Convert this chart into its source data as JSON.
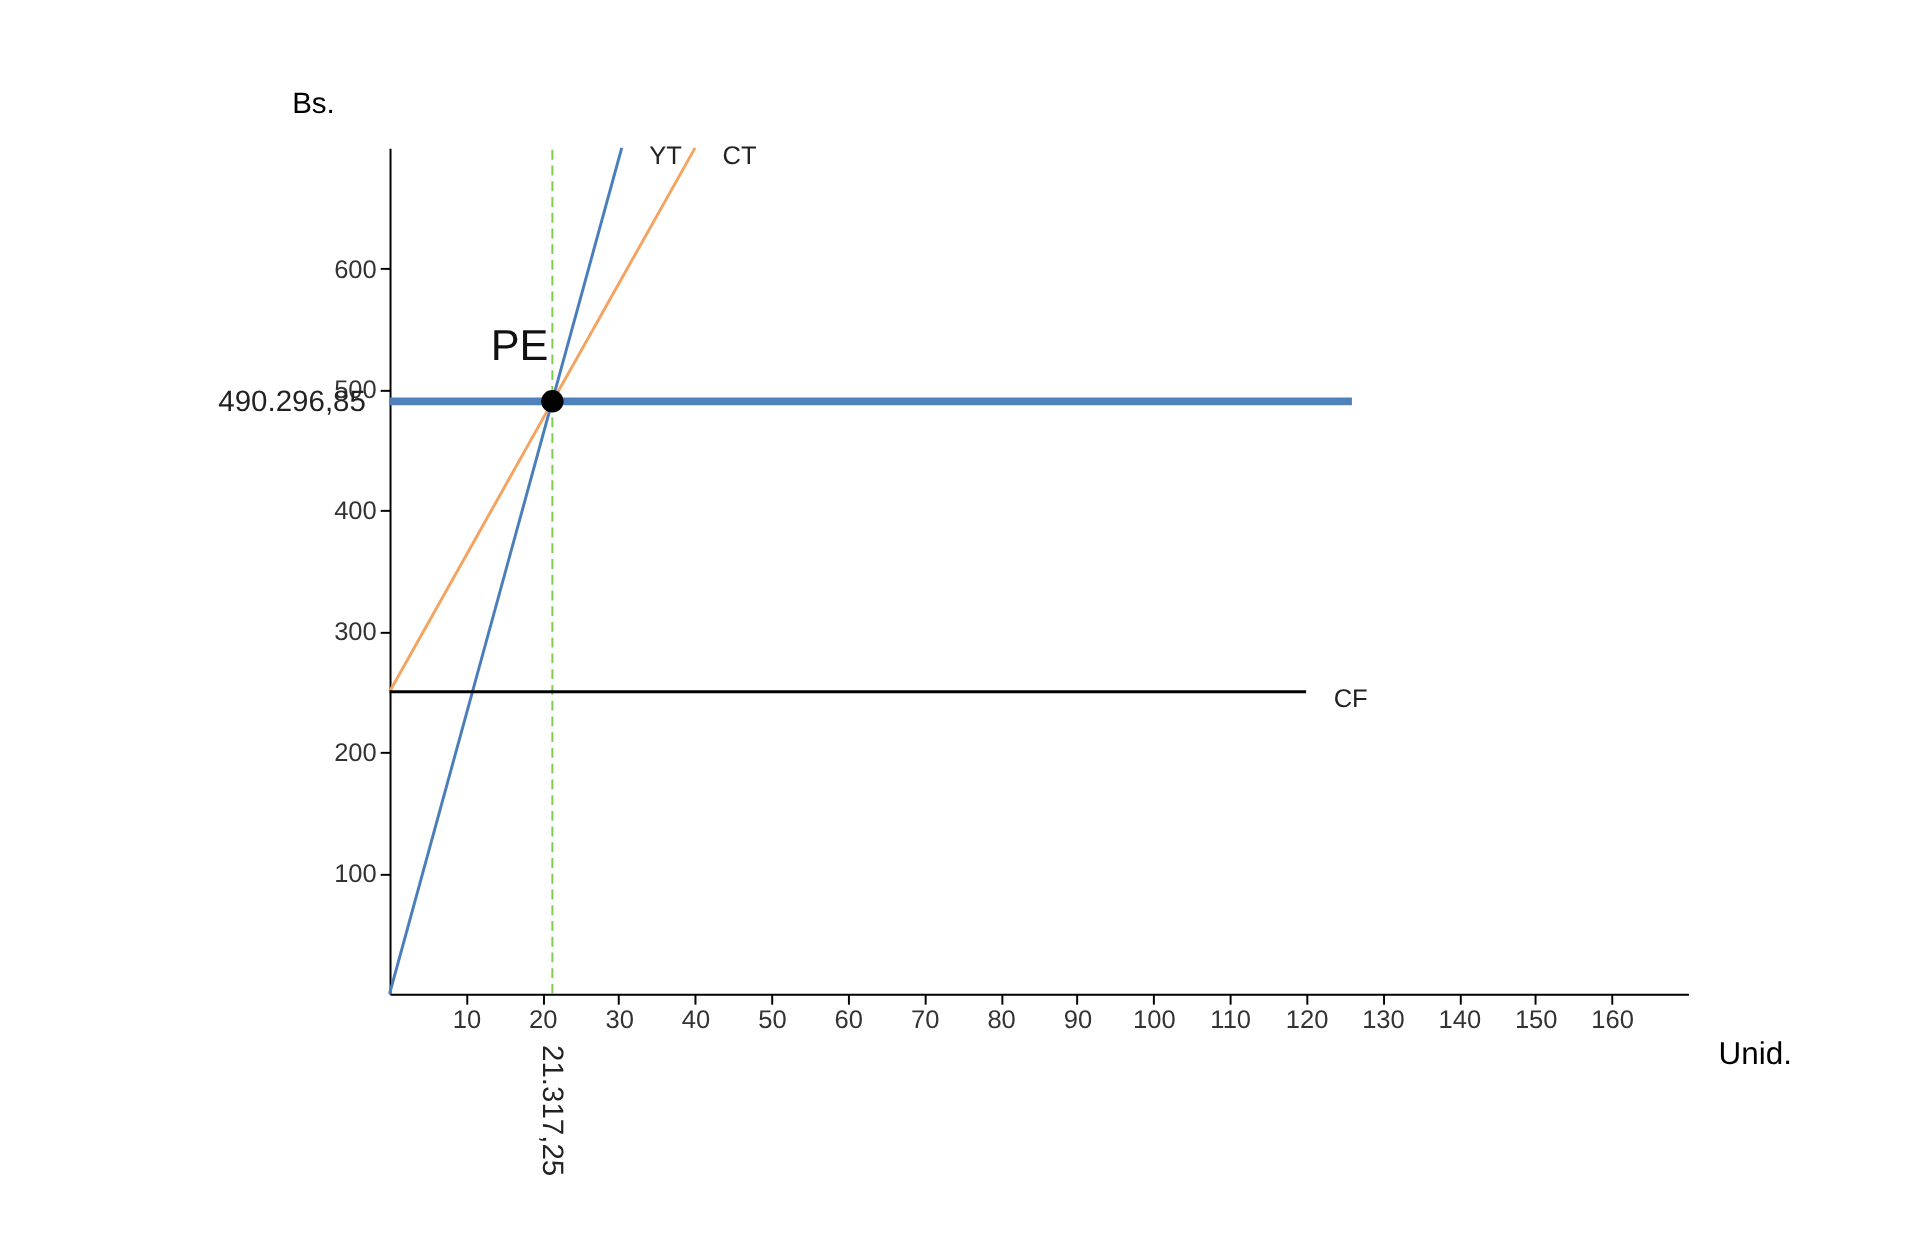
{
  "chart_data": {
    "type": "line",
    "xlabel": "Unid.",
    "ylabel": "Bs.",
    "series": [
      {
        "name": "YT",
        "color": "#4a7ebb",
        "x": [
          0,
          30.4
        ],
        "values": [
          0,
          700
        ]
      },
      {
        "name": "CT",
        "color": "#f4a460",
        "x": [
          0,
          40
        ],
        "values": [
          250,
          700
        ]
      },
      {
        "name": "CF",
        "color": "#000000",
        "x": [
          0,
          120
        ],
        "values": [
          250,
          250
        ]
      },
      {
        "color": "#000000",
        "type": "scatter",
        "marker": "circle",
        "x": [
          21.31725
        ],
        "values": [
          490.29685
        ]
      }
    ],
    "ref_lines": [
      {
        "axis": "y",
        "value": 490.29685,
        "label": "490.296,85",
        "color": "#4f81bd",
        "line_style": "solid"
      },
      {
        "axis": "x",
        "value": 21.31725,
        "label": "21.317,25",
        "color": "#7ccd4a",
        "line_style": "dashed"
      }
    ],
    "annotations": [
      {
        "text": "PE",
        "x": 21.31725,
        "y": 490.29685
      }
    ],
    "xlim": [
      0,
      170
    ],
    "ylim": [
      0,
      700
    ],
    "xticks": [
      10,
      20,
      30,
      40,
      50,
      60,
      70,
      80,
      90,
      100,
      110,
      120,
      130,
      140,
      150,
      160
    ],
    "yticks": [
      100,
      200,
      300,
      400,
      500,
      600
    ],
    "grid": false,
    "line_style": "solid"
  }
}
